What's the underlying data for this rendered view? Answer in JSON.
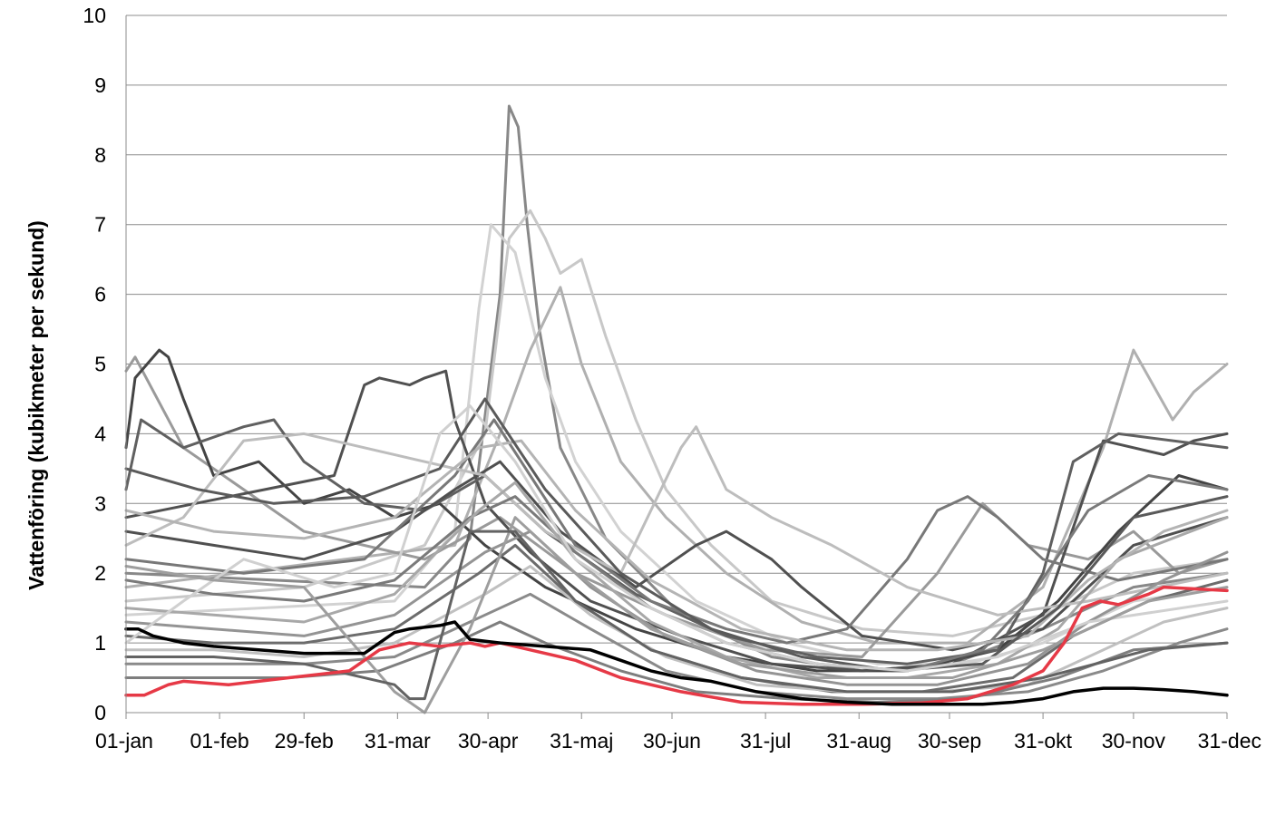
{
  "chart_data": {
    "type": "line",
    "title": "",
    "xlabel": "",
    "ylabel": "Vattenföring (kubikmeter per sekund)",
    "ylim": [
      0,
      10
    ],
    "yticks": [
      "0",
      "1",
      "2",
      "3",
      "4",
      "5",
      "6",
      "7",
      "8",
      "9",
      "10"
    ],
    "xlim": [
      1,
      366
    ],
    "xticks": [
      {
        "label": "01-jan",
        "day": 1
      },
      {
        "label": "01-feb",
        "day": 32
      },
      {
        "label": "29-feb",
        "day": 60
      },
      {
        "label": "31-mar",
        "day": 91
      },
      {
        "label": "30-apr",
        "day": 121
      },
      {
        "label": "31-maj",
        "day": 152
      },
      {
        "label": "30-jun",
        "day": 182
      },
      {
        "label": "31-jul",
        "day": 213
      },
      {
        "label": "31-aug",
        "day": 244
      },
      {
        "label": "30-sep",
        "day": 274
      },
      {
        "label": "31-okt",
        "day": 305
      },
      {
        "label": "30-nov",
        "day": 335
      },
      {
        "label": "31-dec",
        "day": 366
      }
    ],
    "grid": true,
    "legend": "none",
    "series": [
      {
        "color": "#888888",
        "width": 3,
        "x": [
          1,
          100,
          115,
          125,
          128,
          131,
          134,
          138,
          145,
          160,
          185,
          215,
          245,
          275,
          305,
          335,
          366
        ],
        "y": [
          2.0,
          1.8,
          2.5,
          6.0,
          8.7,
          8.4,
          7.0,
          5.5,
          3.8,
          2.5,
          1.4,
          0.8,
          0.6,
          0.7,
          1.2,
          1.8,
          2.0
        ]
      },
      {
        "color": "#c8c8c8",
        "width": 3,
        "x": [
          1,
          60,
          100,
          120,
          128,
          135,
          140,
          145,
          152,
          160,
          170,
          180,
          195,
          215,
          245,
          275,
          305,
          335,
          366
        ],
        "y": [
          1.6,
          1.8,
          2.4,
          4.0,
          6.8,
          7.2,
          6.8,
          6.3,
          6.5,
          5.4,
          4.2,
          3.2,
          2.4,
          1.6,
          1.2,
          1.1,
          1.4,
          2.0,
          2.2
        ]
      },
      {
        "color": "#d2d2d2",
        "width": 3,
        "x": [
          1,
          90,
          110,
          118,
          122,
          130,
          140,
          150,
          165,
          190,
          220,
          250,
          280,
          305,
          335,
          366
        ],
        "y": [
          1.4,
          1.6,
          2.6,
          5.8,
          7.0,
          6.6,
          4.8,
          3.6,
          2.6,
          1.6,
          1.0,
          0.7,
          0.7,
          1.0,
          1.6,
          1.8
        ]
      },
      {
        "color": "#b0b0b0",
        "width": 3,
        "x": [
          1,
          110,
          125,
          135,
          145,
          152,
          165,
          180,
          200,
          225,
          250,
          280,
          305,
          325,
          335,
          348,
          355,
          366
        ],
        "y": [
          1.8,
          2.4,
          4.0,
          5.2,
          6.1,
          5.0,
          3.6,
          2.8,
          2.0,
          1.3,
          1.0,
          1.0,
          1.8,
          3.8,
          5.2,
          4.2,
          4.6,
          5.0
        ]
      },
      {
        "color": "#9a9a9a",
        "width": 3,
        "x": [
          1,
          4,
          20,
          60,
          100,
          125,
          150,
          180,
          213,
          245,
          270,
          285,
          300,
          320,
          335,
          350,
          366
        ],
        "y": [
          4.9,
          5.1,
          3.8,
          2.6,
          2.2,
          2.8,
          2.0,
          1.4,
          0.9,
          0.8,
          2.0,
          3.0,
          2.4,
          2.2,
          2.6,
          2.0,
          2.2
        ]
      },
      {
        "color": "#444444",
        "width": 3,
        "x": [
          1,
          4,
          12,
          15,
          20,
          30,
          45,
          60,
          75,
          90,
          105,
          120,
          140,
          170,
          200,
          230,
          260,
          290,
          310,
          330,
          350,
          366
        ],
        "y": [
          3.8,
          4.8,
          5.2,
          5.1,
          4.5,
          3.4,
          3.6,
          3.0,
          3.2,
          2.8,
          3.0,
          2.4,
          1.8,
          1.2,
          0.8,
          0.6,
          0.6,
          0.9,
          1.6,
          2.6,
          3.4,
          3.2
        ]
      },
      {
        "color": "#505050",
        "width": 3,
        "x": [
          1,
          70,
          80,
          85,
          95,
          100,
          107,
          110,
          120,
          135,
          155,
          185,
          215,
          245,
          275,
          305,
          325,
          345,
          355,
          366
        ],
        "y": [
          2.8,
          3.4,
          4.7,
          4.8,
          4.7,
          4.8,
          4.9,
          4.2,
          3.0,
          2.3,
          1.6,
          1.1,
          0.7,
          0.6,
          0.7,
          1.4,
          3.9,
          3.7,
          3.9,
          4.0
        ]
      },
      {
        "color": "#606060",
        "width": 3,
        "x": [
          1,
          6,
          20,
          40,
          50,
          60,
          80,
          100,
          120,
          140,
          170,
          200,
          230,
          260,
          290,
          305,
          315,
          330,
          366
        ],
        "y": [
          3.2,
          4.2,
          3.8,
          4.1,
          4.2,
          3.6,
          3.0,
          2.9,
          3.4,
          2.6,
          1.7,
          1.1,
          0.8,
          0.7,
          0.9,
          2.0,
          3.6,
          4.0,
          3.8
        ]
      },
      {
        "color": "#505050",
        "width": 3,
        "x": [
          1,
          30,
          60,
          90,
          110,
          125,
          145,
          170,
          190,
          200,
          215,
          225,
          245,
          275,
          305,
          335,
          366
        ],
        "y": [
          2.6,
          2.4,
          2.2,
          2.6,
          3.2,
          3.6,
          2.6,
          1.8,
          2.4,
          2.6,
          2.2,
          1.8,
          1.1,
          0.9,
          1.2,
          2.4,
          2.8
        ]
      },
      {
        "color": "#787878",
        "width": 3,
        "x": [
          1,
          40,
          80,
          110,
          123,
          135,
          150,
          175,
          200,
          220,
          240,
          260,
          270,
          280,
          290,
          305,
          330,
          366
        ],
        "y": [
          2.2,
          2.0,
          2.2,
          3.4,
          4.2,
          3.4,
          2.4,
          1.6,
          1.2,
          1.0,
          1.2,
          2.2,
          2.9,
          3.1,
          2.8,
          2.2,
          1.9,
          2.2
        ]
      },
      {
        "color": "#bdbdbd",
        "width": 3,
        "x": [
          1,
          20,
          40,
          60,
          100,
          120,
          140,
          165,
          185,
          190,
          200,
          215,
          235,
          260,
          290,
          320,
          366
        ],
        "y": [
          2.4,
          2.8,
          3.9,
          4.0,
          3.6,
          3.4,
          2.6,
          2.0,
          3.8,
          4.1,
          3.2,
          2.8,
          2.4,
          1.8,
          1.4,
          1.6,
          2.0
        ]
      },
      {
        "color": "#7a7a7a",
        "width": 3,
        "x": [
          1,
          30,
          60,
          90,
          115,
          130,
          150,
          175,
          200,
          230,
          260,
          285,
          300,
          320,
          340,
          366
        ],
        "y": [
          1.9,
          1.7,
          1.6,
          1.9,
          2.8,
          3.1,
          2.3,
          1.5,
          1.0,
          0.7,
          0.6,
          0.9,
          1.6,
          2.9,
          3.4,
          3.2
        ]
      },
      {
        "color": "#a8a8a8",
        "width": 3,
        "x": [
          1,
          30,
          60,
          90,
          118,
          130,
          150,
          175,
          200,
          230,
          260,
          290,
          310,
          330,
          366
        ],
        "y": [
          1.5,
          1.4,
          1.3,
          1.7,
          2.9,
          3.3,
          2.2,
          1.3,
          0.8,
          0.5,
          0.5,
          0.7,
          1.2,
          2.2,
          2.8
        ]
      },
      {
        "color": "#949494",
        "width": 3,
        "x": [
          1,
          30,
          60,
          90,
          120,
          135,
          155,
          180,
          210,
          240,
          270,
          300,
          320,
          345,
          366
        ],
        "y": [
          1.3,
          1.2,
          1.1,
          1.4,
          2.3,
          2.6,
          1.8,
          1.1,
          0.6,
          0.4,
          0.4,
          0.7,
          1.3,
          1.9,
          2.3
        ]
      },
      {
        "color": "#6c6c6c",
        "width": 3,
        "x": [
          1,
          30,
          60,
          90,
          118,
          130,
          150,
          175,
          205,
          235,
          265,
          295,
          315,
          340,
          366
        ],
        "y": [
          1.1,
          1.0,
          1.0,
          1.2,
          2.0,
          2.4,
          1.6,
          0.9,
          0.5,
          0.3,
          0.3,
          0.5,
          1.1,
          1.6,
          1.9
        ]
      },
      {
        "color": "#c0c0c0",
        "width": 3,
        "x": [
          1,
          30,
          60,
          90,
          120,
          135,
          155,
          180,
          210,
          240,
          270,
          300,
          320,
          345,
          366
        ],
        "y": [
          0.9,
          0.9,
          0.8,
          1.0,
          1.7,
          2.1,
          1.4,
          0.8,
          0.4,
          0.3,
          0.3,
          0.4,
          0.8,
          1.3,
          1.5
        ]
      },
      {
        "color": "#8a8a8a",
        "width": 3,
        "x": [
          1,
          30,
          60,
          90,
          120,
          135,
          155,
          180,
          210,
          240,
          270,
          300,
          325,
          350,
          366
        ],
        "y": [
          0.7,
          0.7,
          0.7,
          0.8,
          1.4,
          1.7,
          1.2,
          0.6,
          0.3,
          0.2,
          0.2,
          0.3,
          0.6,
          1.0,
          1.2
        ]
      },
      {
        "color": "#b4b4b4",
        "width": 3,
        "x": [
          1,
          30,
          60,
          90,
          118,
          132,
          150,
          175,
          205,
          240,
          270,
          300,
          320,
          345,
          366
        ],
        "y": [
          2.9,
          2.6,
          2.5,
          2.8,
          3.8,
          3.9,
          2.9,
          1.9,
          1.2,
          0.9,
          0.9,
          1.1,
          1.9,
          2.6,
          2.9
        ]
      },
      {
        "color": "#5a5a5a",
        "width": 3,
        "x": [
          1,
          25,
          50,
          80,
          105,
          120,
          140,
          165,
          195,
          225,
          255,
          285,
          310,
          335,
          366
        ],
        "y": [
          3.5,
          3.2,
          3.0,
          3.1,
          3.5,
          4.5,
          3.2,
          2.0,
          1.2,
          0.8,
          0.6,
          0.7,
          1.5,
          2.8,
          3.1
        ]
      },
      {
        "color": "#d0d0d0",
        "width": 3,
        "x": [
          1,
          20,
          40,
          70,
          90,
          105,
          115,
          130,
          150,
          175,
          200,
          230,
          260,
          290,
          320,
          366
        ],
        "y": [
          1.0,
          1.6,
          2.2,
          1.8,
          2.0,
          4.0,
          4.4,
          3.6,
          2.2,
          1.5,
          1.0,
          0.7,
          0.6,
          0.8,
          1.3,
          1.6
        ]
      },
      {
        "color": "#7e7e7e",
        "width": 3,
        "x": [
          1,
          25,
          55,
          85,
          110,
          125,
          140,
          165,
          190,
          220,
          250,
          280,
          310,
          335,
          366
        ],
        "y": [
          0.5,
          0.5,
          0.5,
          0.6,
          1.0,
          1.3,
          1.0,
          0.6,
          0.3,
          0.2,
          0.15,
          0.2,
          0.5,
          0.9,
          1.0
        ]
      },
      {
        "color": "#9e9e9e",
        "width": 3,
        "x": [
          1,
          30,
          60,
          90,
          100,
          115,
          130,
          150,
          175,
          205,
          240,
          275,
          305,
          340,
          366
        ],
        "y": [
          2.1,
          1.9,
          1.8,
          0.3,
          0.0,
          1.2,
          2.8,
          2.0,
          1.2,
          0.7,
          0.5,
          0.5,
          0.9,
          1.6,
          1.8
        ]
      },
      {
        "color": "#636363",
        "width": 3,
        "x": [
          1,
          30,
          60,
          90,
          95,
          100,
          115,
          130,
          150,
          175,
          205,
          240,
          275,
          305,
          340,
          366
        ],
        "y": [
          0.8,
          0.8,
          0.7,
          0.4,
          0.2,
          0.2,
          2.6,
          2.6,
          1.6,
          0.9,
          0.5,
          0.3,
          0.3,
          0.5,
          0.9,
          1.0
        ]
      },
      {
        "color": "#e63946",
        "width": 3.5,
        "x": [
          1,
          7,
          15,
          20,
          35,
          45,
          55,
          65,
          75,
          85,
          95,
          105,
          115,
          120,
          125,
          135,
          150,
          165,
          185,
          205,
          225,
          245,
          265,
          280,
          295,
          305,
          312,
          318,
          324,
          330,
          340,
          345,
          366
        ],
        "y": [
          0.25,
          0.25,
          0.4,
          0.45,
          0.4,
          0.45,
          0.5,
          0.55,
          0.6,
          0.9,
          1.0,
          0.95,
          1.0,
          0.95,
          1.0,
          0.9,
          0.75,
          0.5,
          0.3,
          0.15,
          0.12,
          0.12,
          0.14,
          0.2,
          0.4,
          0.6,
          1.0,
          1.5,
          1.6,
          1.55,
          1.7,
          1.8,
          1.75
        ]
      },
      {
        "color": "#000000",
        "width": 3.5,
        "x": [
          1,
          5,
          10,
          20,
          30,
          45,
          60,
          80,
          90,
          95,
          105,
          110,
          115,
          125,
          140,
          155,
          165,
          175,
          185,
          195,
          210,
          225,
          240,
          255,
          270,
          285,
          295,
          305,
          315,
          325,
          335,
          345,
          355,
          366
        ],
        "y": [
          1.2,
          1.2,
          1.1,
          1.0,
          0.95,
          0.9,
          0.85,
          0.85,
          1.15,
          1.2,
          1.25,
          1.3,
          1.05,
          1.0,
          0.95,
          0.9,
          0.75,
          0.6,
          0.5,
          0.45,
          0.3,
          0.2,
          0.15,
          0.12,
          0.12,
          0.12,
          0.15,
          0.2,
          0.3,
          0.35,
          0.35,
          0.33,
          0.3,
          0.25
        ]
      }
    ]
  }
}
